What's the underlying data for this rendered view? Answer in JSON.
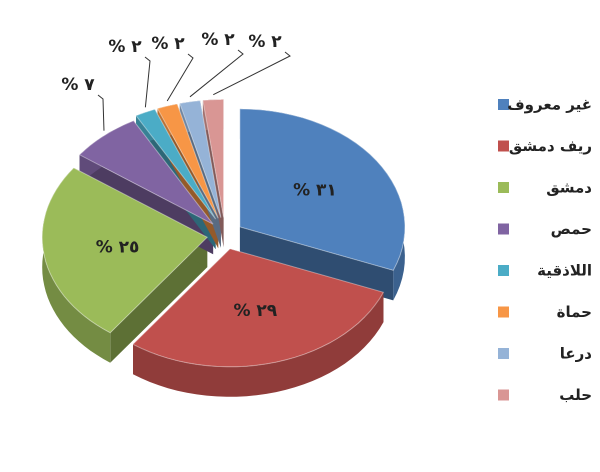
{
  "chart_data": {
    "type": "pie",
    "categories": [
      "غير معروف",
      "ريف دمشق",
      "دمشق",
      "حمص",
      "اللاذقية",
      "حماة",
      "درعا",
      "حلب"
    ],
    "values": [
      31,
      29,
      25,
      7,
      2,
      2,
      2,
      2
    ],
    "value_labels": [
      "% ٣١",
      "% ٢٩",
      "% ٢٥",
      "% ٧",
      "% ٢",
      "% ٢",
      "% ٢",
      "% ٢"
    ],
    "colors": [
      "#4f81bd",
      "#c0504d",
      "#9bbb59",
      "#8064a2",
      "#4bacc6",
      "#f79646",
      "#95b3d7",
      "#d99694"
    ],
    "legend": "right"
  }
}
